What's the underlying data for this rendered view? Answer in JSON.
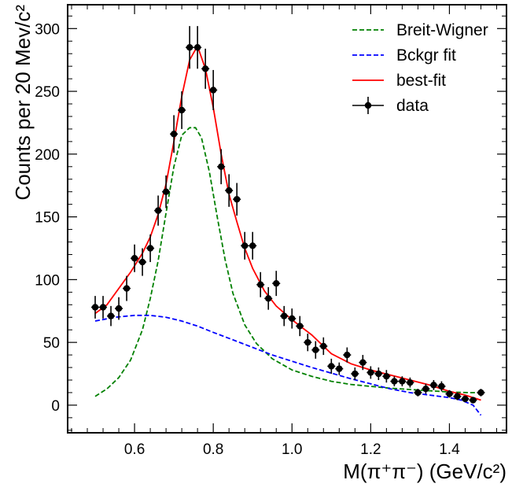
{
  "chart_data": {
    "type": "scatter",
    "xlabel": "M(π⁺π⁻) (GeV/c²)",
    "ylabel": "Counts per 20 Mev/c²",
    "xlim": [
      0.43,
      1.545
    ],
    "ylim": [
      -22,
      319
    ],
    "x_ticks": [
      0.6,
      0.8,
      1.0,
      1.2,
      1.4
    ],
    "x_tick_labels": [
      "0.6",
      "0.8",
      "1.0",
      "1.2",
      "1.4"
    ],
    "y_ticks": [
      0,
      50,
      100,
      150,
      200,
      250,
      300
    ],
    "y_tick_labels": [
      "0",
      "50",
      "100",
      "150",
      "200",
      "250",
      "300"
    ],
    "legend_position": "top-right",
    "colors": {
      "breit_wigner": "#008000",
      "background": "#0000ff",
      "best_fit": "#ff0000",
      "data": "#000000"
    },
    "legend": [
      {
        "label": "Breit-Wigner",
        "style": "dashed",
        "color": "#008000"
      },
      {
        "label": "Bckgr fit",
        "style": "dashed",
        "color": "#0000ff"
      },
      {
        "label": "best-fit",
        "style": "solid",
        "color": "#ff0000"
      },
      {
        "label": "data",
        "style": "errorbar",
        "color": "#000000"
      }
    ],
    "bin_half_width": 0.01,
    "data": {
      "x": [
        0.5,
        0.52,
        0.54,
        0.56,
        0.58,
        0.6,
        0.62,
        0.64,
        0.66,
        0.68,
        0.7,
        0.72,
        0.74,
        0.76,
        0.78,
        0.8,
        0.82,
        0.84,
        0.86,
        0.88,
        0.9,
        0.92,
        0.94,
        0.96,
        0.98,
        1.0,
        1.02,
        1.04,
        1.06,
        1.08,
        1.1,
        1.12,
        1.14,
        1.16,
        1.18,
        1.2,
        1.22,
        1.24,
        1.26,
        1.28,
        1.3,
        1.32,
        1.34,
        1.36,
        1.38,
        1.4,
        1.42,
        1.44,
        1.46,
        1.48
      ],
      "y": [
        78,
        78,
        71,
        77,
        93,
        117,
        114,
        125,
        155,
        170,
        216,
        235,
        285,
        285,
        268,
        251,
        190,
        171,
        164,
        127,
        127,
        96,
        85,
        97,
        71,
        69,
        63,
        50,
        44,
        47,
        31,
        29,
        40,
        25,
        34,
        26,
        25,
        23,
        19,
        19,
        18,
        10,
        13,
        16,
        15,
        9,
        7,
        5,
        4,
        10
      ],
      "yerr": [
        9,
        9,
        8,
        9,
        10,
        11,
        11,
        11,
        12,
        13,
        15,
        15,
        17,
        17,
        16,
        16,
        14,
        13,
        13,
        11,
        11,
        10,
        9,
        10,
        8,
        8,
        8,
        7,
        7,
        7,
        6,
        5,
        6,
        5,
        6,
        5,
        5,
        5,
        4,
        4,
        4,
        3,
        4,
        4,
        4,
        3,
        3,
        2,
        2,
        3
      ]
    },
    "curves": {
      "breit_wigner": {
        "x": [
          0.5,
          0.53,
          0.56,
          0.59,
          0.62,
          0.64,
          0.66,
          0.68,
          0.7,
          0.72,
          0.74,
          0.755,
          0.77,
          0.79,
          0.81,
          0.83,
          0.85,
          0.88,
          0.91,
          0.95,
          1.0,
          1.05,
          1.1,
          1.15,
          1.2,
          1.25,
          1.3,
          1.35,
          1.4,
          1.45,
          1.48
        ],
        "y": [
          7,
          13,
          22,
          36,
          60,
          85,
          115,
          153,
          190,
          215,
          221,
          221,
          213,
          186,
          150,
          116,
          89,
          64,
          49,
          37,
          28,
          23,
          19,
          16.5,
          15,
          13.5,
          12.5,
          11.5,
          10.5,
          10,
          10
        ]
      },
      "background": {
        "x": [
          0.5,
          0.55,
          0.6,
          0.64,
          0.68,
          0.72,
          0.76,
          0.8,
          0.85,
          0.9,
          0.95,
          1.0,
          1.05,
          1.1,
          1.15,
          1.2,
          1.25,
          1.3,
          1.35,
          1.4,
          1.43,
          1.46,
          1.48
        ],
        "y": [
          67,
          70,
          71.5,
          71.5,
          70,
          67,
          63,
          58,
          52,
          46,
          40,
          35,
          30,
          25.5,
          21,
          17,
          13,
          10,
          8,
          6,
          4,
          0,
          -8
        ]
      },
      "best_fit": {
        "x": [
          0.5,
          0.53,
          0.56,
          0.59,
          0.62,
          0.64,
          0.66,
          0.68,
          0.7,
          0.72,
          0.74,
          0.76,
          0.78,
          0.8,
          0.82,
          0.84,
          0.86,
          0.88,
          0.9,
          0.93,
          0.96,
          1.0,
          1.05,
          1.1,
          1.15,
          1.2,
          1.25,
          1.3,
          1.35,
          1.4,
          1.44,
          1.48
        ],
        "y": [
          73,
          80,
          93,
          106,
          121,
          134,
          152,
          176,
          210,
          246,
          275,
          286,
          268,
          237,
          200,
          168,
          146,
          125,
          109,
          91,
          79,
          68,
          56,
          41,
          33,
          28,
          24,
          20,
          16,
          11,
          8,
          4
        ]
      }
    }
  }
}
